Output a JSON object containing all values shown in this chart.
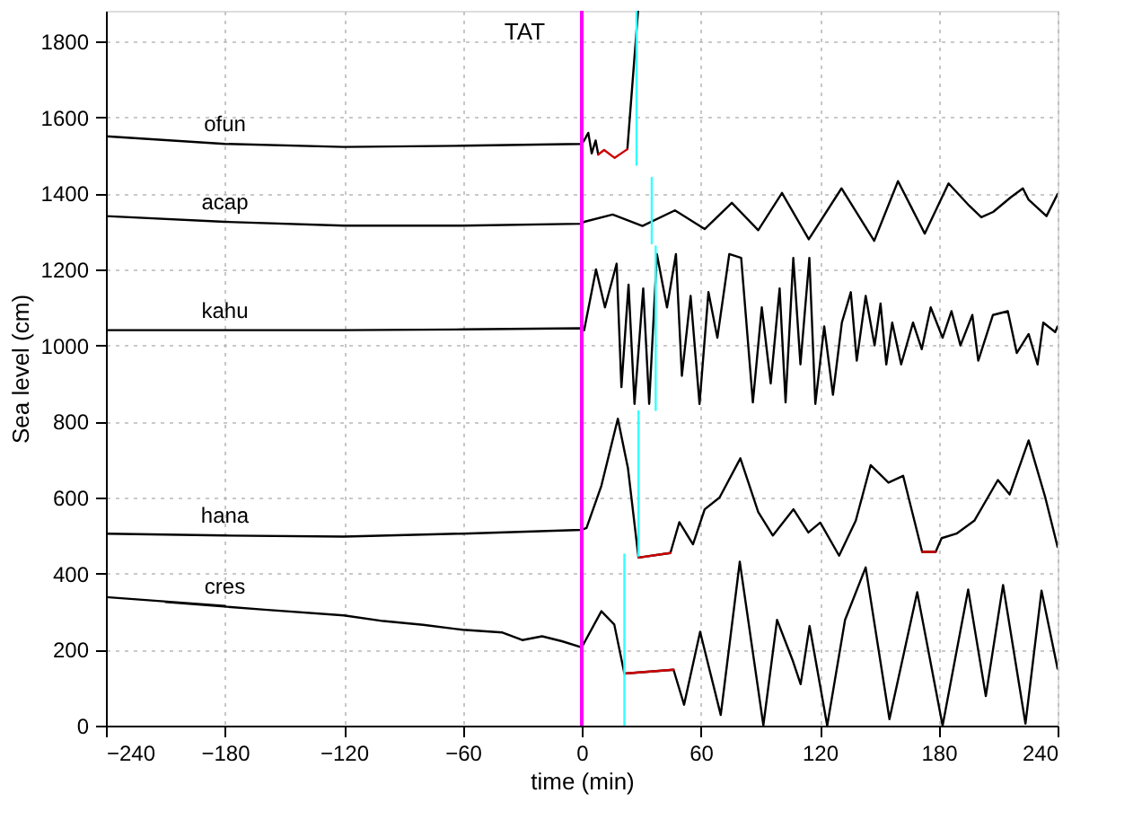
{
  "chart_data": {
    "type": "line",
    "title": "TAT",
    "xlabel": "time (min)",
    "ylabel": "Sea level (cm)",
    "xlim": [
      -240,
      240
    ],
    "ylim": [
      0,
      1880
    ],
    "xticks": [
      -240,
      -180,
      -120,
      -60,
      0,
      60,
      120,
      180,
      240
    ],
    "yticks": [
      0,
      200,
      400,
      600,
      800,
      1000,
      1200,
      1400,
      1600,
      1800
    ],
    "grid": true,
    "marker": "none",
    "line_style": "solid",
    "ref_lines": [
      {
        "axis": "x",
        "value": 0,
        "color": "#ff00ff"
      }
    ],
    "series": [
      {
        "name": "ofun",
        "color": "#000000",
        "x": [
          -240,
          -180,
          -120,
          -60,
          0,
          1.2,
          3.3,
          5,
          7,
          8.3,
          11.3,
          16.6,
          23,
          28.4
        ],
        "values": [
          1550,
          1530,
          1522,
          1525,
          1530,
          1539,
          1559,
          1505,
          1539,
          1502,
          null,
          null,
          1516,
          1880
        ]
      },
      {
        "name": "acap",
        "color": "#000000",
        "x": [
          -240,
          -180,
          -120,
          -60,
          0,
          1.2,
          15.6,
          30.6,
          47,
          62,
          75.7,
          89,
          101,
          114.5,
          131,
          147.5,
          159.5,
          173,
          185,
          195.5,
          201.5,
          207.5,
          216.5,
          222.5,
          225.4,
          234.4,
          240
        ],
        "values": [
          1340,
          1325,
          1315,
          1315,
          1320,
          1325,
          1344,
          1314,
          1355,
          1306,
          1375,
          1303,
          1401,
          1279,
          1413,
          1275,
          1432,
          1294,
          1426,
          1367,
          1337,
          1351,
          1390,
          1413,
          1383,
          1340,
          1398
        ]
      },
      {
        "name": "kahu",
        "color": "#000000",
        "x": [
          -240,
          -180,
          -120,
          -60,
          0,
          1.2,
          2.7,
          7.2,
          11.7,
          17.6,
          20,
          23.6,
          26.6,
          31,
          34,
          37.9,
          43,
          47.5,
          50.5,
          54.9,
          59.4,
          63.9,
          68.4,
          74.4,
          80.4,
          86.3,
          90.8,
          95.3,
          99.8,
          102.8,
          106.7,
          110.3,
          114.8,
          117.8,
          122.3,
          126.7,
          131.2,
          135.7,
          138.7,
          143.2,
          147.7,
          150.7,
          153.6,
          156.6,
          161.1,
          167.1,
          171.5,
          176,
          182,
          186.5,
          191,
          197,
          200,
          207.4,
          214.9,
          219.4,
          225.4,
          229.9,
          232.8,
          238.8,
          240
        ],
        "values": [
          1040,
          1040,
          1040,
          1042,
          1045,
          1040,
          1080,
          1200,
          1100,
          1215,
          890,
          1160,
          846,
          1150,
          846,
          1240,
          1100,
          1240,
          920,
          1130,
          846,
          1140,
          1020,
          1240,
          1230,
          850,
          1100,
          900,
          1150,
          850,
          1230,
          950,
          1230,
          846,
          1050,
          870,
          1060,
          1140,
          960,
          1130,
          1000,
          1110,
          950,
          1060,
          950,
          1060,
          990,
          1100,
          1020,
          1090,
          1000,
          1080,
          960,
          1080,
          1090,
          980,
          1030,
          950,
          1060,
          1035,
          1050
        ]
      },
      {
        "name": "hana",
        "color": "#000000",
        "x": [
          -240,
          -180,
          -120,
          -60,
          0,
          2.4,
          9.9,
          18.2,
          23.3,
          28.6,
          44.7,
          49.2,
          56.1,
          62,
          69.5,
          80,
          89,
          96.4,
          106.8,
          114.3,
          120.3,
          129.8,
          138.2,
          145.7,
          154.7,
          162.1,
          171.7,
          178.5,
          181.5,
          189,
          198,
          209.9,
          215.8,
          225.4,
          233.8,
          240
        ],
        "values": [
          505,
          500,
          497,
          505,
          515,
          520,
          631,
          807,
          677,
          442,
          454,
          535,
          477,
          569,
          600,
          703,
          562,
          500,
          569,
          508,
          534,
          447,
          539,
          685,
          639,
          657,
          457,
          457,
          493,
          505,
          539,
          646,
          608,
          750,
          600,
          470
        ]
      },
      {
        "name": "cres",
        "color": "#000000",
        "x": [
          -240,
          -180,
          -210,
          -160,
          -120,
          -100,
          -80,
          -60,
          -40,
          -30,
          -20,
          -10,
          0,
          9.9,
          16.4,
          21.5,
          46.3,
          51.6,
          59.7,
          70.1,
          79.7,
          91.6,
          98.5,
          106.5,
          110.4,
          114.9,
          123.8,
          132.8,
          143.2,
          155.2,
          169.2,
          182,
          194.9,
          203.8,
          212.5,
          223.8,
          231.9,
          240
        ],
        "values": [
          338,
          315,
          325,
          305,
          290,
          275,
          265,
          252,
          245,
          225,
          235,
          222,
          206,
          301,
          266,
          137,
          147,
          55,
          247,
          28,
          431,
          1,
          278,
          170,
          109,
          262,
          0,
          278,
          416,
          17,
          351,
          0,
          358,
          78,
          370,
          5,
          355,
          150
        ]
      },
      {
        "color": "#cc0000",
        "x": [
          8.3,
          11.3,
          16.6,
          23
        ],
        "values": [
          1502,
          1514,
          1493,
          1516
        ]
      },
      {
        "color": "#cc0000",
        "x": [
          28.6,
          44.7
        ],
        "values": [
          442,
          454
        ]
      },
      {
        "color": "#cc0000",
        "x": [
          171.7,
          178.5
        ],
        "values": [
          457,
          457
        ]
      },
      {
        "color": "#cc0000",
        "x": [
          21.5,
          46.3
        ],
        "values": [
          137,
          147
        ]
      },
      {
        "color": "#33ffff",
        "x": [
          27.6,
          27.6
        ],
        "values": [
          1880,
          1475
        ]
      },
      {
        "color": "#33ffff",
        "x": [
          35.3,
          35.3
        ],
        "values": [
          1441,
          1268
        ]
      },
      {
        "color": "#33ffff",
        "x": [
          37.3,
          37.3
        ],
        "values": [
          1260,
          830
        ]
      },
      {
        "color": "#33ffff",
        "x": [
          28.6,
          28.6
        ],
        "values": [
          827,
          447
        ]
      },
      {
        "color": "#33ffff",
        "x": [
          21.5,
          21.5
        ],
        "values": [
          450,
          0
        ]
      }
    ]
  }
}
